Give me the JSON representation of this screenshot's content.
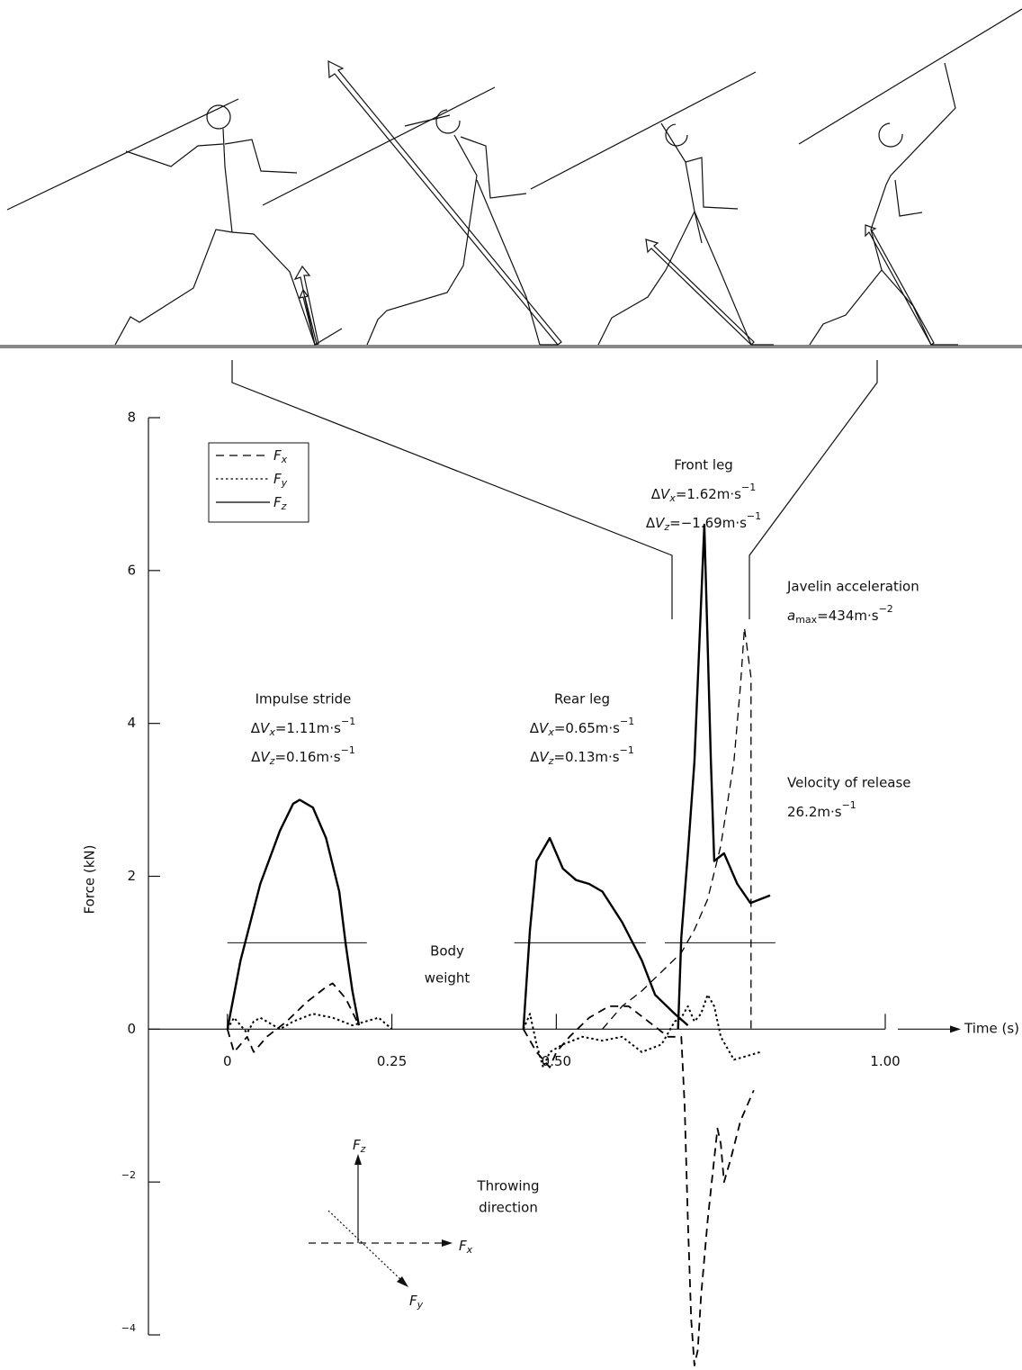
{
  "chart_data": {
    "type": "line",
    "xlabel": "Time (s)",
    "ylabel": "Force (kN)",
    "xlim": [
      -0.12,
      1.0
    ],
    "ylim": [
      -4,
      8
    ],
    "xticks": [
      0,
      0.25,
      {
        "value": 0.5,
        "label": "0.50"
      },
      {
        "value": 1,
        "label": "1.00"
      }
    ],
    "yticks": [
      8,
      6,
      4,
      2,
      0,
      {
        "value": -2,
        "label": "−2"
      },
      {
        "value": -4,
        "label": "−4"
      }
    ],
    "legend": "upper left",
    "series": [
      {
        "name": "Fx",
        "color": "#000000",
        "dash": "dashed",
        "x": [
          0,
          0.01,
          0.02,
          0.03,
          0.04,
          0.06,
          0.09,
          0.12,
          0.15,
          0.16,
          0.18,
          0.2,
          null,
          0.45,
          0.47,
          0.49,
          0.5,
          0.52,
          0.55,
          0.58,
          0.61,
          0.64,
          0.67,
          0.69,
          0.695,
          0.7,
          0.705,
          0.71,
          0.715,
          0.72,
          0.73,
          0.745,
          0.75,
          0.755,
          0.765,
          0.78,
          0.8
        ],
        "values": [
          0,
          -0.3,
          -0.2,
          -0.1,
          -0.3,
          -0.1,
          0.1,
          0.35,
          0.55,
          0.6,
          0.4,
          0.05,
          null,
          0,
          -0.3,
          -0.5,
          -0.3,
          -0.1,
          0.15,
          0.3,
          0.3,
          0.1,
          -0.1,
          -0.1,
          -1.0,
          -2.5,
          -3.8,
          -4.4,
          -4.2,
          -3.5,
          -2.5,
          -1.3,
          -1.5,
          -2.0,
          -1.7,
          -1.2,
          -0.8
        ]
      },
      {
        "name": "Fy",
        "color": "#000000",
        "dash": "dotted",
        "x": [
          0,
          0.01,
          0.02,
          0.03,
          0.04,
          0.05,
          0.07,
          0.08,
          0.1,
          0.13,
          0.16,
          0.19,
          0.21,
          0.23,
          0.25,
          null,
          0.45,
          0.46,
          0.47,
          0.48,
          0.49,
          0.51,
          0.54,
          0.57,
          0.6,
          0.63,
          0.66,
          0.68,
          0.69,
          0.7,
          0.71,
          0.72,
          0.73,
          0.74,
          0.75,
          0.77,
          0.79,
          0.81
        ],
        "values": [
          0,
          0.15,
          0.05,
          -0.05,
          0.1,
          0.15,
          0.05,
          0,
          0.1,
          0.2,
          0.15,
          0.05,
          0.1,
          0.15,
          0,
          null,
          0,
          0.2,
          -0.2,
          -0.5,
          -0.3,
          -0.2,
          -0.1,
          -0.15,
          -0.1,
          -0.3,
          -0.2,
          0.1,
          0.15,
          0.3,
          0.1,
          0.2,
          0.45,
          0.3,
          -0.1,
          -0.4,
          -0.35,
          -0.3
        ]
      },
      {
        "name": "Fz",
        "color": "#000000",
        "dash": "solid",
        "x": [
          0,
          0.02,
          0.05,
          0.08,
          0.1,
          0.11,
          0.13,
          0.15,
          0.17,
          0.18,
          0.19,
          0.2,
          null,
          0.45,
          0.46,
          0.47,
          0.49,
          0.51,
          0.53,
          0.55,
          0.57,
          0.6,
          0.63,
          0.65,
          0.68,
          0.7,
          null,
          0.685,
          0.69,
          0.7,
          0.71,
          0.725,
          0.735,
          0.74,
          0.755,
          0.775,
          0.795,
          0.825
        ],
        "values": [
          0,
          0.9,
          1.9,
          2.6,
          2.95,
          3.0,
          2.9,
          2.5,
          1.8,
          1.1,
          0.5,
          0.05,
          null,
          0,
          1.3,
          2.2,
          2.5,
          2.1,
          1.95,
          1.9,
          1.8,
          1.4,
          0.9,
          0.45,
          0.2,
          0.05,
          null,
          0,
          1.2,
          2.3,
          3.5,
          6.6,
          3.5,
          2.2,
          2.3,
          1.9,
          1.65,
          1.75
        ]
      },
      {
        "color": "#000000",
        "dash": "dashed",
        "x": [
          0.57,
          0.6,
          0.63,
          0.66,
          0.69,
          0.71,
          0.73,
          0.75,
          0.77,
          0.78,
          0.786,
          0.796,
          0.796
        ],
        "values": [
          0,
          0.3,
          0.5,
          0.75,
          1.0,
          1.3,
          1.7,
          2.4,
          3.5,
          4.5,
          5.25,
          4.6,
          0
        ]
      }
    ],
    "body_weight": {
      "value": 1.13,
      "label": [
        "Body",
        "weight"
      ],
      "spans": [
        [
          0,
          0.212
        ],
        [
          0.436,
          0.636
        ],
        [
          0.665,
          0.833
        ]
      ]
    },
    "annotations": [
      {
        "lines": [
          "Impulse stride",
          "ΔVx=1.11m·s−1",
          "ΔVz=0.16m·s−1"
        ]
      },
      {
        "lines": [
          "Rear leg",
          "ΔVx=0.65m·s−1",
          "ΔVz=0.13m·s−1"
        ]
      },
      {
        "lines": [
          "Front leg",
          "ΔVx=1.62m·s−1",
          "ΔVz=−1.69m·s−1"
        ]
      },
      {
        "lines": [
          "Javelin acceleration",
          "amax=434m·s−2"
        ]
      },
      {
        "lines": [
          "Velocity of release",
          "26.2m·s−1"
        ]
      }
    ],
    "direction_diagram": {
      "labels": [
        "Fz",
        "Fx",
        "Fy"
      ],
      "caption": [
        "Throwing",
        "direction"
      ]
    }
  }
}
